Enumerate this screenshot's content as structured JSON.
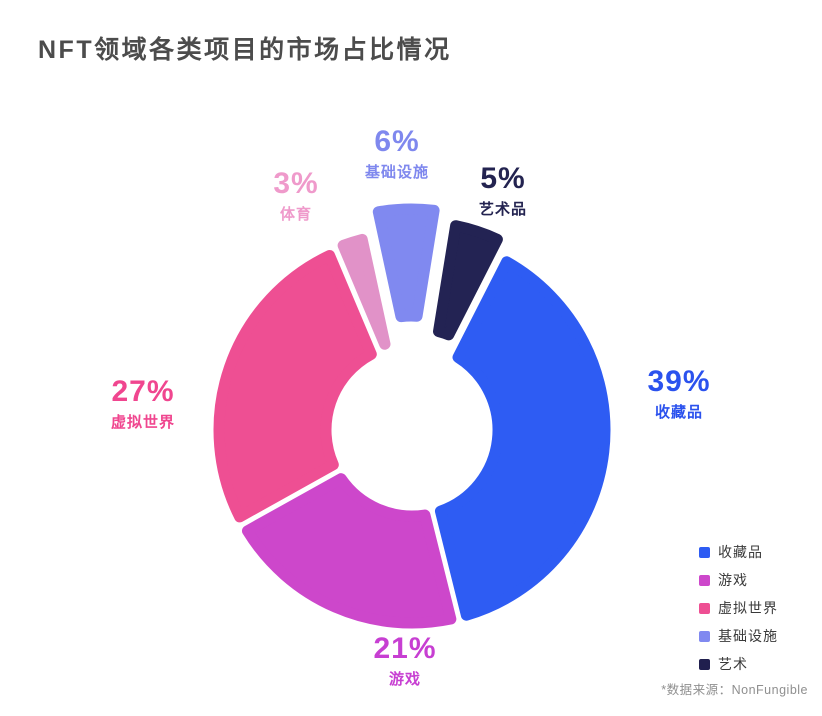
{
  "page": {
    "title": "NFT领域各类项目的市场占比情况",
    "footnote": "*数据来源：NonFungible"
  },
  "chart_data": {
    "type": "pie",
    "donut": true,
    "title": "NFT领域各类项目的市场占比情况",
    "unit": "%",
    "categories": [
      "收藏品",
      "游戏",
      "虚拟世界",
      "体育",
      "基础设施",
      "艺术品"
    ],
    "values": [
      39,
      21,
      27,
      3,
      6,
      5
    ],
    "legend_position": "bottom-right",
    "slices": [
      {
        "key": "collectibles",
        "name": "收藏品",
        "pct_label": "39%",
        "value": 39,
        "color": "#2e5cf3",
        "label_color": "#2b52ee"
      },
      {
        "key": "games",
        "name": "游戏",
        "pct_label": "21%",
        "value": 21,
        "color": "#cd47cb",
        "label_color": "#c73fd2"
      },
      {
        "key": "virtual-worlds",
        "name": "虚拟世界",
        "pct_label": "27%",
        "value": 27,
        "color": "#ee4f93",
        "label_color": "#f0468f"
      },
      {
        "key": "sports",
        "name": "体育",
        "pct_label": "3%",
        "value": 3,
        "color": "#e192c8",
        "label_color": "#ef9acb"
      },
      {
        "key": "infrastructure",
        "name": "基础设施",
        "pct_label": "6%",
        "value": 6,
        "color": "#8089f0",
        "label_color": "#7f88ee"
      },
      {
        "key": "art",
        "name": "艺术品",
        "pct_label": "5%",
        "value": 5,
        "color": "#232353",
        "label_color": "#232350"
      }
    ],
    "legend": {
      "items": [
        {
          "key": "collectibles",
          "label": "收藏品",
          "color": "#2e5cf3"
        },
        {
          "key": "games",
          "label": "游戏",
          "color": "#cd47cb"
        },
        {
          "key": "virtual-worlds",
          "label": "虚拟世界",
          "color": "#ee4f93"
        },
        {
          "key": "infrastructure",
          "label": "基础设施",
          "color": "#8089f0"
        },
        {
          "key": "art",
          "label": "艺术",
          "color": "#201f4e"
        }
      ]
    }
  }
}
